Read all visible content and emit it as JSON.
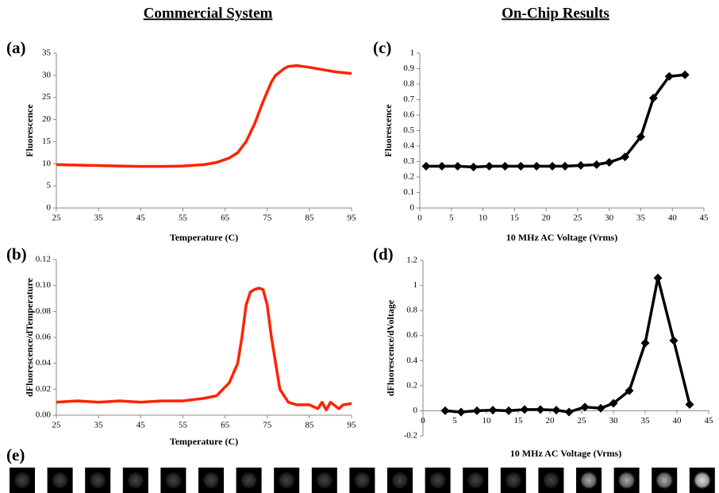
{
  "headings": [
    "Commercial System",
    "On-Chip Results"
  ],
  "strip": {
    "panel_label": "(e)"
  },
  "chart_data": [
    {
      "type": "line",
      "panel_label": "(a)",
      "x_label": "Temperature (C)",
      "y_label": "Fluorescence",
      "color": "#ff2200",
      "marker": "none",
      "x": [
        25,
        30,
        35,
        40,
        45,
        50,
        55,
        60,
        63,
        66,
        68,
        70,
        72,
        74,
        76,
        77,
        79,
        80,
        82,
        85,
        88,
        91,
        95
      ],
      "values": [
        9.8,
        9.7,
        9.6,
        9.5,
        9.4,
        9.4,
        9.5,
        9.8,
        10.3,
        11.3,
        12.5,
        15,
        19,
        24,
        28.5,
        30,
        31.5,
        32,
        32.2,
        31.8,
        31.3,
        30.8,
        30.4
      ],
      "xlim": [
        25,
        95
      ],
      "xticks": [
        25,
        35,
        45,
        55,
        65,
        75,
        85,
        95
      ],
      "ylim": [
        0,
        35
      ],
      "yticks": [
        0,
        5,
        10,
        15,
        20,
        25,
        30,
        35
      ]
    },
    {
      "type": "line",
      "panel_label": "(b)",
      "x_label": "Temperature (C)",
      "y_label": "dFluorescence/dTemperature",
      "color": "#ff2200",
      "marker": "none",
      "x": [
        25,
        30,
        35,
        40,
        45,
        50,
        55,
        60,
        63,
        66,
        68,
        69,
        70,
        71,
        72,
        73,
        74,
        75,
        76,
        77,
        78,
        80,
        82,
        85,
        87,
        88,
        89,
        90,
        92,
        93,
        95
      ],
      "values": [
        0.01,
        0.011,
        0.01,
        0.011,
        0.01,
        0.011,
        0.011,
        0.013,
        0.015,
        0.025,
        0.04,
        0.06,
        0.085,
        0.095,
        0.097,
        0.098,
        0.097,
        0.085,
        0.06,
        0.04,
        0.02,
        0.01,
        0.008,
        0.008,
        0.005,
        0.01,
        0.004,
        0.01,
        0.005,
        0.008,
        0.009
      ],
      "xlim": [
        25,
        95
      ],
      "xticks": [
        25,
        35,
        45,
        55,
        65,
        75,
        85,
        95
      ],
      "ylim": [
        0,
        0.12
      ],
      "yticks": [
        {
          "value": 0,
          "label": "0.00"
        },
        0.02,
        0.04,
        0.06,
        0.08,
        {
          "value": 0.1,
          "label": "0.10"
        },
        0.12
      ]
    },
    {
      "type": "line",
      "panel_label": "(c)",
      "x_label": "10 MHz AC Voltage (Vrms)",
      "y_label": "Fluorescence",
      "color": "#000000",
      "marker": "diamond",
      "x": [
        1,
        3.5,
        6,
        8.5,
        11,
        13.5,
        16,
        18.5,
        21,
        23,
        25.5,
        28,
        30,
        32.5,
        35,
        37,
        39.5,
        42
      ],
      "values": [
        0.27,
        0.27,
        0.27,
        0.265,
        0.27,
        0.27,
        0.27,
        0.27,
        0.27,
        0.27,
        0.275,
        0.28,
        0.295,
        0.33,
        0.46,
        0.71,
        0.85,
        0.86
      ],
      "xlim": [
        0,
        45
      ],
      "xticks": [
        0,
        5,
        10,
        15,
        20,
        25,
        30,
        35,
        40,
        45
      ],
      "ylim": [
        0,
        1
      ],
      "yticks": [
        0,
        0.1,
        0.2,
        0.3,
        0.4,
        0.5,
        0.6,
        0.7,
        0.8,
        0.9,
        1
      ]
    },
    {
      "type": "line",
      "panel_label": "(d)",
      "x_label": "10 MHz AC Voltage (Vrms)",
      "y_label": "dFluorescence/dVoltage",
      "color": "#000000",
      "marker": "diamond",
      "x": [
        3.5,
        6,
        8.5,
        11,
        13.5,
        16,
        18.5,
        21,
        23,
        25.5,
        28,
        30,
        32.5,
        35,
        37,
        39.5,
        42
      ],
      "values": [
        0,
        -0.01,
        0,
        0.005,
        0,
        0.01,
        0.01,
        0.005,
        -0.01,
        0.03,
        0.02,
        0.06,
        0.16,
        0.54,
        1.06,
        0.56,
        0.05
      ],
      "xlim": [
        0,
        45
      ],
      "xticks": [
        0,
        5,
        10,
        15,
        20,
        25,
        30,
        35,
        40,
        45
      ],
      "ylim": [
        -0.2,
        1.2
      ],
      "yticks": [
        -0.2,
        0,
        0.2,
        0.4,
        0.6,
        0.8,
        1,
        1.2
      ]
    }
  ]
}
